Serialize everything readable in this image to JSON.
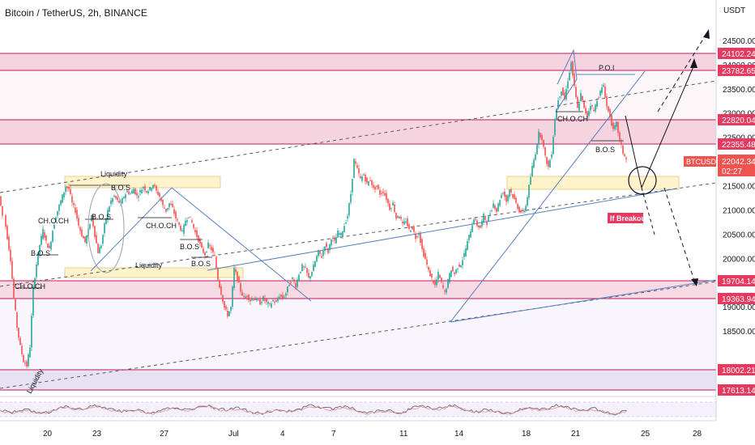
{
  "header": {
    "title": "Bitcoin / TetherUS, 2h, BINANCE"
  },
  "chart_data": {
    "type": "candlestick",
    "symbol": "BTCUSDT",
    "interval": "2h",
    "exchange": "BINANCE",
    "currency": "USDT",
    "ylim": [
      17300,
      25350
    ],
    "y_ticks": [
      25000,
      24500,
      24000,
      23500,
      23000,
      22500,
      22000,
      21500,
      21000,
      20500,
      20000,
      19500,
      19000,
      18500,
      18000
    ],
    "y_tick_labels": [
      "",
      "24500.00",
      "24000.00",
      "23500.00",
      "23000.00",
      "22500.00",
      "",
      "21500.00",
      "21000.00",
      "20500.00",
      "20000.00",
      "19500.00",
      "19000.00",
      "18500.00",
      ""
    ],
    "x_ticks": [
      "20",
      "23",
      "27",
      "Jul",
      "4",
      "7",
      "11",
      "14",
      "18",
      "21",
      "25",
      "28"
    ],
    "price_levels": [
      {
        "value": 24102.24,
        "label": "24102.24"
      },
      {
        "value": 23782.65,
        "label": "23782.65"
      },
      {
        "value": 22820.04,
        "label": "22820.04"
      },
      {
        "value": 22355.48,
        "label": "22355.48"
      },
      {
        "value": 19704.14,
        "label": "19704.14"
      },
      {
        "value": 19363.94,
        "label": "19363.94"
      },
      {
        "value": 18002.21,
        "label": "18002.21"
      },
      {
        "value": 17613.14,
        "label": "17613.14"
      }
    ],
    "current_price": {
      "label": "BTCUSDT",
      "value": "22042.34",
      "countdown": "02:27"
    },
    "annotations": [
      "Liquidity",
      "B.O.S",
      "CH.O.CH",
      "B.O.S",
      "B.O.S",
      "CH.O.CH",
      "B.O.S",
      "B.O.S",
      "Liquidity",
      "CH.O.CH",
      "Liquidity",
      "P.O.I",
      "CH.O.CH",
      "B.O.S",
      "If Breakout"
    ],
    "price_path": [
      [
        0,
        21300
      ],
      [
        6,
        20900
      ],
      [
        10,
        20450
      ],
      [
        14,
        20000
      ],
      [
        18,
        19200
      ],
      [
        22,
        18600
      ],
      [
        26,
        18200
      ],
      [
        30,
        17900
      ],
      [
        34,
        17800
      ],
      [
        38,
        18200
      ],
      [
        42,
        19400
      ],
      [
        46,
        19900
      ],
      [
        50,
        20300
      ],
      [
        54,
        20600
      ],
      [
        58,
        20350
      ],
      [
        62,
        20200
      ],
      [
        66,
        20600
      ],
      [
        70,
        20900
      ],
      [
        74,
        21100
      ],
      [
        78,
        21300
      ],
      [
        82,
        21500
      ],
      [
        86,
        21450
      ],
      [
        90,
        21150
      ],
      [
        94,
        21000
      ],
      [
        98,
        20700
      ],
      [
        102,
        20500
      ],
      [
        106,
        20350
      ],
      [
        110,
        20600
      ],
      [
        114,
        20900
      ],
      [
        118,
        20500
      ],
      [
        122,
        20150
      ],
      [
        126,
        20300
      ],
      [
        130,
        20700
      ],
      [
        134,
        21000
      ],
      [
        138,
        21200
      ],
      [
        142,
        21300
      ],
      [
        146,
        21200
      ],
      [
        150,
        21150
      ],
      [
        154,
        21300
      ],
      [
        158,
        21400
      ],
      [
        162,
        21350
      ],
      [
        166,
        21450
      ],
      [
        170,
        21300
      ],
      [
        174,
        21400
      ],
      [
        178,
        21500
      ],
      [
        182,
        21400
      ],
      [
        186,
        21450
      ],
      [
        190,
        21550
      ],
      [
        194,
        21400
      ],
      [
        198,
        21300
      ],
      [
        202,
        21100
      ],
      [
        206,
        21000
      ],
      [
        210,
        21150
      ],
      [
        214,
        21050
      ],
      [
        218,
        20850
      ],
      [
        222,
        20700
      ],
      [
        226,
        20550
      ],
      [
        230,
        20800
      ],
      [
        234,
        20900
      ],
      [
        238,
        20750
      ],
      [
        242,
        20550
      ],
      [
        246,
        20400
      ],
      [
        250,
        20200
      ],
      [
        254,
        20100
      ],
      [
        258,
        20300
      ],
      [
        262,
        20200
      ],
      [
        266,
        20050
      ],
      [
        270,
        19600
      ],
      [
        274,
        19300
      ],
      [
        278,
        19000
      ],
      [
        282,
        18850
      ],
      [
        286,
        19000
      ],
      [
        290,
        19800
      ],
      [
        294,
        19600
      ],
      [
        298,
        19350
      ],
      [
        302,
        19200
      ],
      [
        306,
        19250
      ],
      [
        310,
        19150
      ],
      [
        314,
        19200
      ],
      [
        318,
        19150
      ],
      [
        322,
        19100
      ],
      [
        326,
        19200
      ],
      [
        330,
        19100
      ],
      [
        334,
        19050
      ],
      [
        338,
        19150
      ],
      [
        342,
        19100
      ],
      [
        346,
        19250
      ],
      [
        350,
        19200
      ],
      [
        354,
        19300
      ],
      [
        358,
        19500
      ],
      [
        362,
        19600
      ],
      [
        366,
        19450
      ],
      [
        370,
        19700
      ],
      [
        374,
        19850
      ],
      [
        378,
        19800
      ],
      [
        382,
        19600
      ],
      [
        386,
        19750
      ],
      [
        390,
        19950
      ],
      [
        394,
        20150
      ],
      [
        398,
        20050
      ],
      [
        402,
        20300
      ],
      [
        406,
        20150
      ],
      [
        410,
        20450
      ],
      [
        414,
        20350
      ],
      [
        418,
        20550
      ],
      [
        422,
        20500
      ],
      [
        426,
        20700
      ],
      [
        430,
        20900
      ],
      [
        434,
        21350
      ],
      [
        438,
        22050
      ],
      [
        442,
        21850
      ],
      [
        446,
        21650
      ],
      [
        450,
        21750
      ],
      [
        454,
        21550
      ],
      [
        458,
        21650
      ],
      [
        462,
        21450
      ],
      [
        466,
        21500
      ],
      [
        470,
        21350
      ],
      [
        474,
        21400
      ],
      [
        478,
        21250
      ],
      [
        482,
        21050
      ],
      [
        486,
        21150
      ],
      [
        490,
        20850
      ],
      [
        494,
        20900
      ],
      [
        498,
        20700
      ],
      [
        502,
        20800
      ],
      [
        506,
        20600
      ],
      [
        510,
        20650
      ],
      [
        514,
        20450
      ],
      [
        518,
        20550
      ],
      [
        522,
        20200
      ],
      [
        526,
        20000
      ],
      [
        530,
        19750
      ],
      [
        534,
        19600
      ],
      [
        538,
        19450
      ],
      [
        542,
        19700
      ],
      [
        546,
        19500
      ],
      [
        550,
        19300
      ],
      [
        554,
        19550
      ],
      [
        558,
        19800
      ],
      [
        562,
        19700
      ],
      [
        566,
        19850
      ],
      [
        570,
        19900
      ],
      [
        574,
        20100
      ],
      [
        578,
        20350
      ],
      [
        582,
        20600
      ],
      [
        586,
        20850
      ],
      [
        590,
        20700
      ],
      [
        594,
        20650
      ],
      [
        598,
        20900
      ],
      [
        602,
        20750
      ],
      [
        606,
        20950
      ],
      [
        610,
        21150
      ],
      [
        614,
        21000
      ],
      [
        618,
        21250
      ],
      [
        622,
        21400
      ],
      [
        626,
        21200
      ],
      [
        630,
        21450
      ],
      [
        634,
        21300
      ],
      [
        638,
        21150
      ],
      [
        642,
        21000
      ],
      [
        646,
        20950
      ],
      [
        650,
        21100
      ],
      [
        654,
        21500
      ],
      [
        658,
        21900
      ],
      [
        662,
        22200
      ],
      [
        666,
        22600
      ],
      [
        670,
        22500
      ],
      [
        674,
        22100
      ],
      [
        678,
        21900
      ],
      [
        682,
        22200
      ],
      [
        686,
        22900
      ],
      [
        690,
        23300
      ],
      [
        694,
        23500
      ],
      [
        698,
        23300
      ],
      [
        702,
        23700
      ],
      [
        706,
        24050
      ],
      [
        710,
        23550
      ],
      [
        714,
        23100
      ],
      [
        718,
        23400
      ],
      [
        722,
        23100
      ],
      [
        726,
        22950
      ],
      [
        730,
        23200
      ],
      [
        734,
        23050
      ],
      [
        738,
        23300
      ],
      [
        742,
        23450
      ],
      [
        746,
        23600
      ],
      [
        750,
        23150
      ],
      [
        754,
        22950
      ],
      [
        758,
        22650
      ],
      [
        762,
        22800
      ],
      [
        766,
        22450
      ],
      [
        770,
        22200
      ],
      [
        774,
        22050
      ]
    ],
    "oscillator": "indicator panel"
  },
  "colors": {
    "up": "#26a69a",
    "down": "#ef5350",
    "level_band": "#f2c6d6",
    "level_line": "#c2185b",
    "level_tag": "#e53960",
    "supply_zone": "#fff3cc",
    "trend": "#5b7fc1",
    "channel": "#6b7280",
    "price_tag": "#ef5350"
  }
}
